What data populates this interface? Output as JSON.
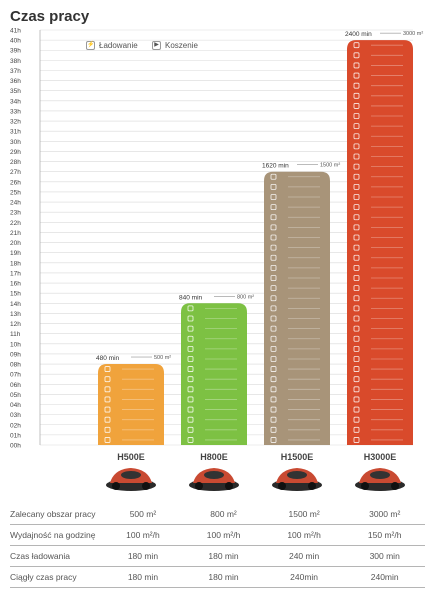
{
  "title": "Czas pracy",
  "legend": {
    "charging": "Ładowanie",
    "mowing": "Koszenie"
  },
  "chart_data": {
    "type": "bar",
    "categories": [
      "H500E",
      "H800E",
      "H1500E",
      "H3000E"
    ],
    "values_minutes": [
      480,
      840,
      1620,
      2400
    ],
    "bar_labels": [
      "480 min",
      "840 min",
      "1620 min",
      "2400 min"
    ],
    "area_labels": [
      "500 m²",
      "800 m²",
      "1500 m²",
      "3000 m²"
    ],
    "y_ticks": [
      "00h",
      "01h",
      "02h",
      "03h",
      "04h",
      "05h",
      "06h",
      "07h",
      "08h",
      "09h",
      "10h",
      "11h",
      "12h",
      "13h",
      "14h",
      "15h",
      "16h",
      "17h",
      "18h",
      "19h",
      "20h",
      "21h",
      "22h",
      "23h",
      "24h",
      "25h",
      "26h",
      "27h",
      "28h",
      "29h",
      "30h",
      "31h",
      "32h",
      "33h",
      "34h",
      "35h",
      "36h",
      "37h",
      "38h",
      "39h",
      "40h",
      "41h"
    ],
    "ylim_hours": [
      0,
      41
    ],
    "grid": true,
    "colors": [
      "#f0a33c",
      "#7dc143",
      "#a89479",
      "#d94a2b"
    ]
  },
  "models": [
    {
      "name": "H500E",
      "image": "mower-image"
    },
    {
      "name": "H800E",
      "image": "mower-image"
    },
    {
      "name": "H1500E",
      "image": "mower-image"
    },
    {
      "name": "H3000E",
      "image": "mower-image"
    }
  ],
  "specs": [
    {
      "label": "Zalecany obszar pracy",
      "values": [
        "500 m²",
        "800 m²",
        "1500 m²",
        "3000 m²"
      ]
    },
    {
      "label": "Wydajność na godzinę",
      "values": [
        "100 m²/h",
        "100 m²/h",
        "100 m²/h",
        "150 m²/h"
      ]
    },
    {
      "label": "Czas ładowania",
      "values": [
        "180 min",
        "180 min",
        "240 min",
        "300 min"
      ]
    },
    {
      "label": "Ciągły czas pracy",
      "values": [
        "180 min",
        "180 min",
        "240min",
        "240min"
      ]
    }
  ]
}
